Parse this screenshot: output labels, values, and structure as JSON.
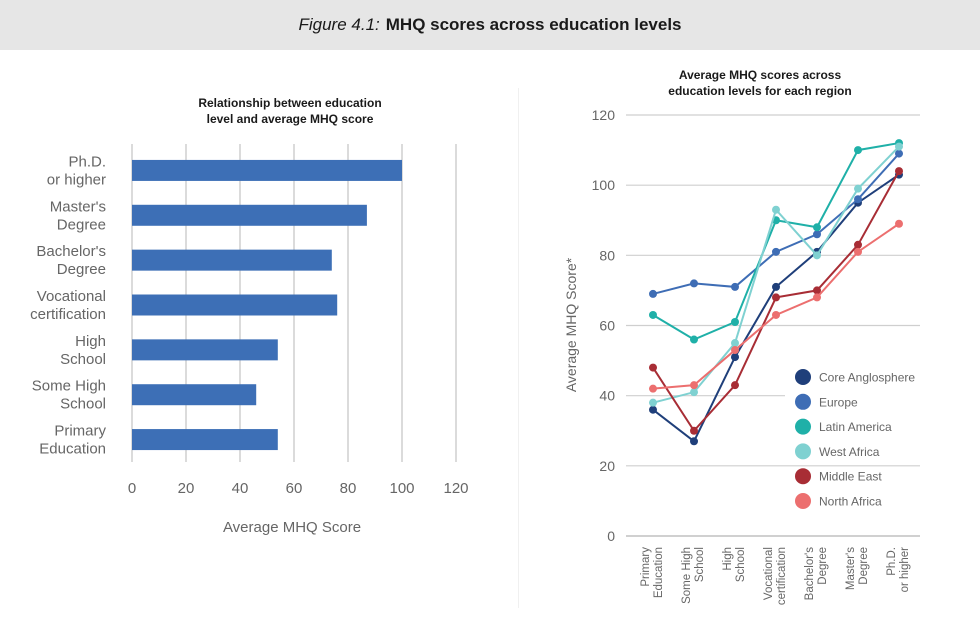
{
  "figure": {
    "number": "Figure 4.1:",
    "title": "MHQ scores across education levels"
  },
  "chart_data": [
    {
      "type": "bar",
      "orientation": "horizontal",
      "title_lines": [
        "Relationship between education",
        "level and average MHQ score"
      ],
      "xlabel": "Average MHQ Score",
      "xlim": [
        0,
        120
      ],
      "xticks": [
        0,
        20,
        40,
        60,
        80,
        100,
        120
      ],
      "categories": [
        [
          "Ph.D.",
          "or higher"
        ],
        [
          "Master's",
          "Degree"
        ],
        [
          "Bachelor's",
          "Degree"
        ],
        [
          "Vocational",
          "certification"
        ],
        [
          "High",
          "School"
        ],
        [
          "Some High",
          "School"
        ],
        [
          "Primary",
          "Education"
        ]
      ],
      "values": [
        100,
        87,
        74,
        76,
        54,
        46,
        54
      ],
      "color": "#3d6fb6"
    },
    {
      "type": "line",
      "title_lines": [
        "Average MHQ scores across",
        "education levels for each region"
      ],
      "ylabel": "Average MHQ Score*",
      "ylim": [
        0,
        120
      ],
      "yticks": [
        0,
        20,
        40,
        60,
        80,
        100,
        120
      ],
      "categories": [
        [
          "Primary",
          "Education"
        ],
        [
          "Some High",
          "School"
        ],
        [
          "High",
          "School"
        ],
        [
          "Vocational",
          "certification"
        ],
        [
          "Bachelor's",
          "Degree"
        ],
        [
          "Master's",
          "Degree"
        ],
        [
          "Ph.D.",
          "or higher"
        ]
      ],
      "series": [
        {
          "name": "Core Anglosphere",
          "color": "#1f3f7a",
          "values": [
            36,
            27,
            51,
            71,
            81,
            95,
            103
          ]
        },
        {
          "name": "Europe",
          "color": "#3e6db5",
          "values": [
            69,
            72,
            71,
            81,
            86,
            96,
            109
          ]
        },
        {
          "name": "Latin America",
          "color": "#1fb0a8",
          "values": [
            63,
            56,
            61,
            90,
            88,
            110,
            112
          ]
        },
        {
          "name": "West Africa",
          "color": "#7fd1d1",
          "values": [
            38,
            41,
            55,
            93,
            80,
            99,
            111
          ]
        },
        {
          "name": "Middle East",
          "color": "#a82d35",
          "values": [
            48,
            30,
            43,
            68,
            70,
            83,
            104
          ]
        },
        {
          "name": "North Africa",
          "color": "#ec6f6f",
          "values": [
            42,
            43,
            53,
            63,
            68,
            81,
            89
          ]
        }
      ]
    }
  ]
}
